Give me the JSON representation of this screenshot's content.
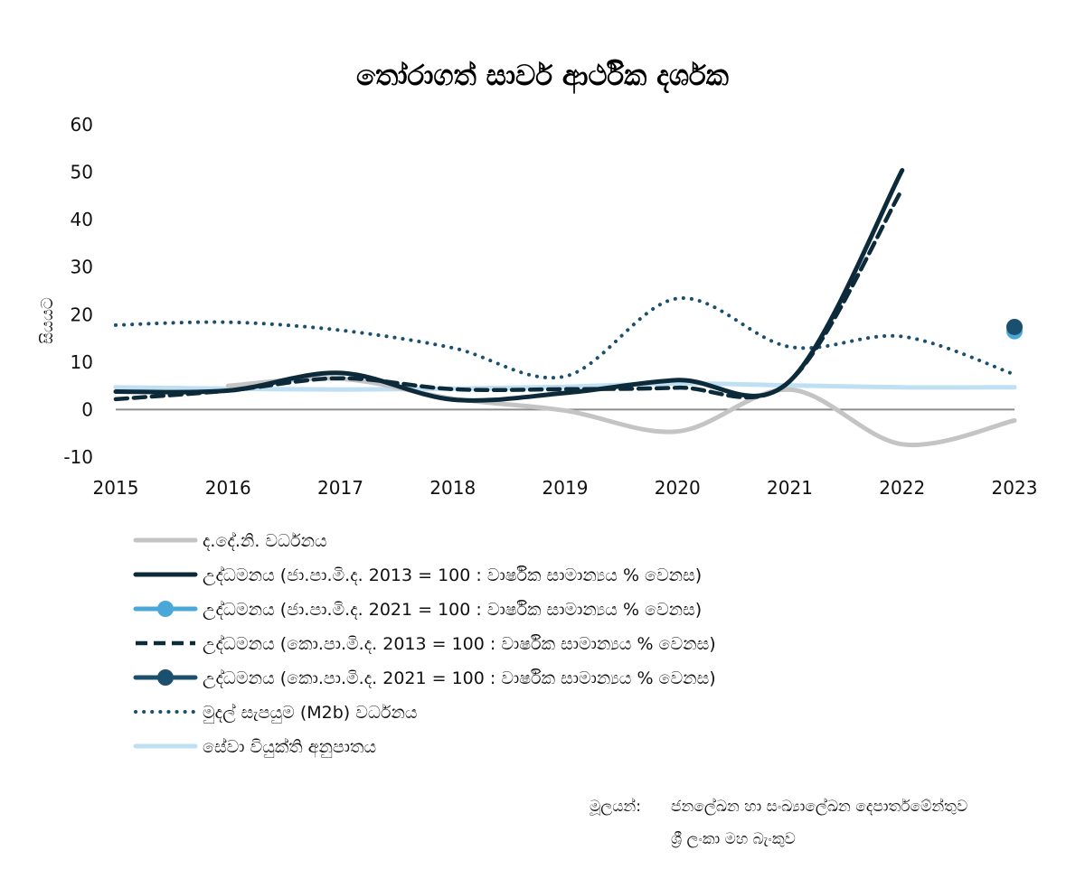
{
  "chart_data": {
    "type": "line",
    "title": "තෝරාගත් සාර්ව ආර්ථික දර්ශක",
    "ylabel": "සියයට",
    "xlabel": "",
    "x": [
      "2015",
      "2016",
      "2017",
      "2018",
      "2019",
      "2020",
      "2021",
      "2022",
      "2023"
    ],
    "ylim": [
      -10,
      60
    ],
    "yticks": [
      60,
      50,
      40,
      30,
      20,
      10,
      0,
      -10
    ],
    "legend_position": "bottom",
    "series": [
      {
        "name": "ද.දේ.නි. වර්ධනය",
        "style": "solid",
        "color": "#c4c4c4",
        "points": [
          [
            2016,
            5.0
          ],
          [
            2017,
            6.5
          ],
          [
            2018,
            2.3
          ],
          [
            2019,
            -0.2
          ],
          [
            2020,
            -4.6
          ],
          [
            2021,
            4.2
          ],
          [
            2022,
            -7.3
          ],
          [
            2023,
            -2.3
          ]
        ]
      },
      {
        "name": "උද්ධමනය (ජා.පා.මි.ද. 2013 = 100 : වාර්ෂික සාමාන්‍යය % වෙනස)",
        "style": "solid",
        "color": "#0c2a3a",
        "points": [
          [
            2015,
            3.8
          ],
          [
            2016,
            4.0
          ],
          [
            2017,
            7.7
          ],
          [
            2018,
            2.1
          ],
          [
            2019,
            3.5
          ],
          [
            2020,
            6.2
          ],
          [
            2021,
            6.0
          ],
          [
            2022,
            50.4
          ]
        ]
      },
      {
        "name": "උද්ධමනය (ජා.පා.මි.ද. 2021 = 100 : වාර්ෂික සාමාන්‍යය % වෙනස)",
        "style": "marker",
        "color": "#4aa8d8",
        "points": [
          [
            2023,
            16.5
          ]
        ]
      },
      {
        "name": "උද්ධමනය (කො.පා.මි.ද. 2013 = 100 : වාර්ෂික සාමාන්‍යය % වෙනස)",
        "style": "dashed",
        "color": "#0c2a3a",
        "points": [
          [
            2015,
            2.2
          ],
          [
            2016,
            4.0
          ],
          [
            2017,
            6.6
          ],
          [
            2018,
            4.3
          ],
          [
            2019,
            4.3
          ],
          [
            2020,
            4.6
          ],
          [
            2021,
            6.0
          ],
          [
            2022,
            46.4
          ]
        ]
      },
      {
        "name": "උද්ධමනය (කො.පා.මි.ද. 2021 = 100 : වාර්ෂික සාමාන්‍යය % වෙනස)",
        "style": "marker",
        "color": "#1b4f6e",
        "points": [
          [
            2023,
            17.4
          ]
        ]
      },
      {
        "name": "මුදල් සැපයුම (M2b) වර්ධනය",
        "style": "dotted",
        "color": "#1b4f6e",
        "points": [
          [
            2015,
            17.8
          ],
          [
            2016,
            18.4
          ],
          [
            2017,
            16.7
          ],
          [
            2018,
            13.0
          ],
          [
            2019,
            7.0
          ],
          [
            2020,
            23.4
          ],
          [
            2021,
            13.2
          ],
          [
            2022,
            15.4
          ],
          [
            2023,
            7.4
          ]
        ]
      },
      {
        "name": "සේවා වියුක්ති අනුපාතය",
        "style": "solid",
        "color": "#bfe0f2",
        "points": [
          [
            2015,
            4.7
          ],
          [
            2016,
            4.4
          ],
          [
            2017,
            4.2
          ],
          [
            2018,
            4.4
          ],
          [
            2019,
            4.8
          ],
          [
            2020,
            5.5
          ],
          [
            2021,
            5.1
          ],
          [
            2022,
            4.7
          ],
          [
            2023,
            4.7
          ]
        ]
      }
    ]
  },
  "source": {
    "label": "මූලයන්:",
    "lines": [
      "ජනලේඛන හා සංඛ්‍යාලේඛන දෙපාර්තමේන්තුව",
      "ශ්‍රී ලංකා මහ බැංකුව"
    ]
  }
}
